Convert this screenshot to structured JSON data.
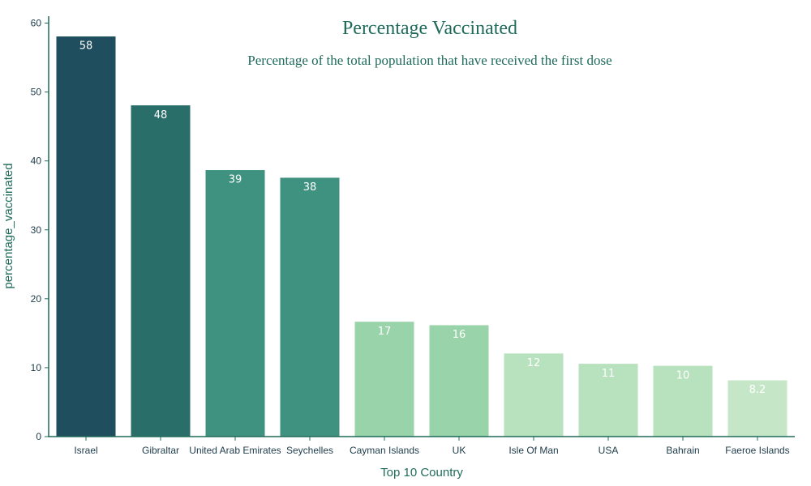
{
  "chart_data": {
    "type": "bar",
    "title": "Percentage Vaccinated",
    "subtitle": "Percentage of the total population that have received the first dose",
    "xlabel": "Top 10 Country",
    "ylabel": "percentage_vaccinated",
    "ylim": [
      0,
      61
    ],
    "yticks": [
      0,
      10,
      20,
      30,
      40,
      50,
      60
    ],
    "grid": false,
    "categories": [
      "Israel",
      "Gibraltar",
      "United Arab Emirates",
      "Seychelles",
      "Cayman Islands",
      "UK",
      "Isle Of Man",
      "USA",
      "Bahrain",
      "Faeroe Islands"
    ],
    "values": [
      58.1,
      48.1,
      38.7,
      37.6,
      16.7,
      16.2,
      12.1,
      10.6,
      10.3,
      8.2
    ],
    "labels": [
      "58",
      "48",
      "39",
      "38",
      "17",
      "16",
      "12",
      "11",
      "10",
      "8.2"
    ],
    "colors": [
      "#1f4e5f",
      "#2a6e6a",
      "#3f9280",
      "#3f9280",
      "#99d3a9",
      "#99d3a9",
      "#b7e2bd",
      "#b7e2bd",
      "#b7e2bd",
      "#c5e6c7"
    ],
    "label_colors": [
      "#ffffff",
      "#ffffff",
      "#ffffff",
      "#ffffff",
      "#ffffff",
      "#ffffff",
      "#ffffff",
      "#ffffff",
      "#ffffff",
      "#ffffff"
    ],
    "axis_color": "#1f6b5a"
  }
}
